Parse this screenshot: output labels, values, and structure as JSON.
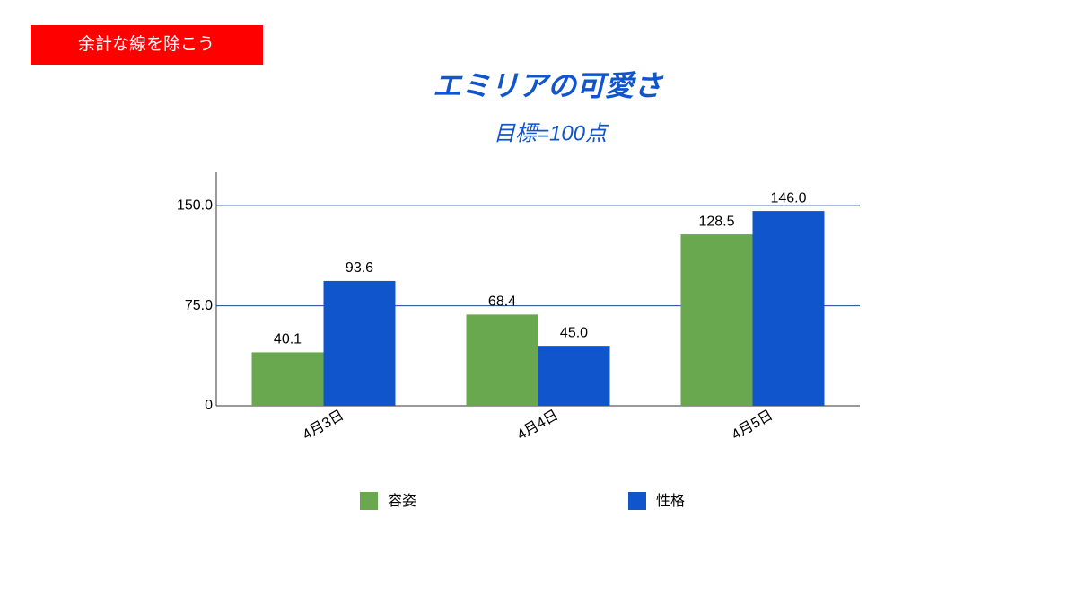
{
  "chart_data": {
    "type": "bar",
    "annotation": "余計な線を除こう",
    "title": "エミリアの可愛さ",
    "subtitle": "目標=100点",
    "categories": [
      "4月3日",
      "4月4日",
      "4月5日"
    ],
    "series": [
      {
        "name": "容姿",
        "color": "#6aa84f",
        "values": [
          40.1,
          68.4,
          128.5
        ],
        "value_labels": [
          "40.1",
          "68.4",
          "128.5"
        ]
      },
      {
        "name": "性格",
        "color": "#1155cc",
        "values": [
          93.6,
          45,
          146
        ],
        "value_labels": [
          "93.6",
          "45.0",
          "146.0"
        ]
      }
    ],
    "ylim": [
      0,
      175
    ],
    "yticks": [
      0,
      {
        "value": 75,
        "label": "75.0"
      },
      {
        "value": 150,
        "label": "150.0"
      }
    ],
    "grid": true
  }
}
